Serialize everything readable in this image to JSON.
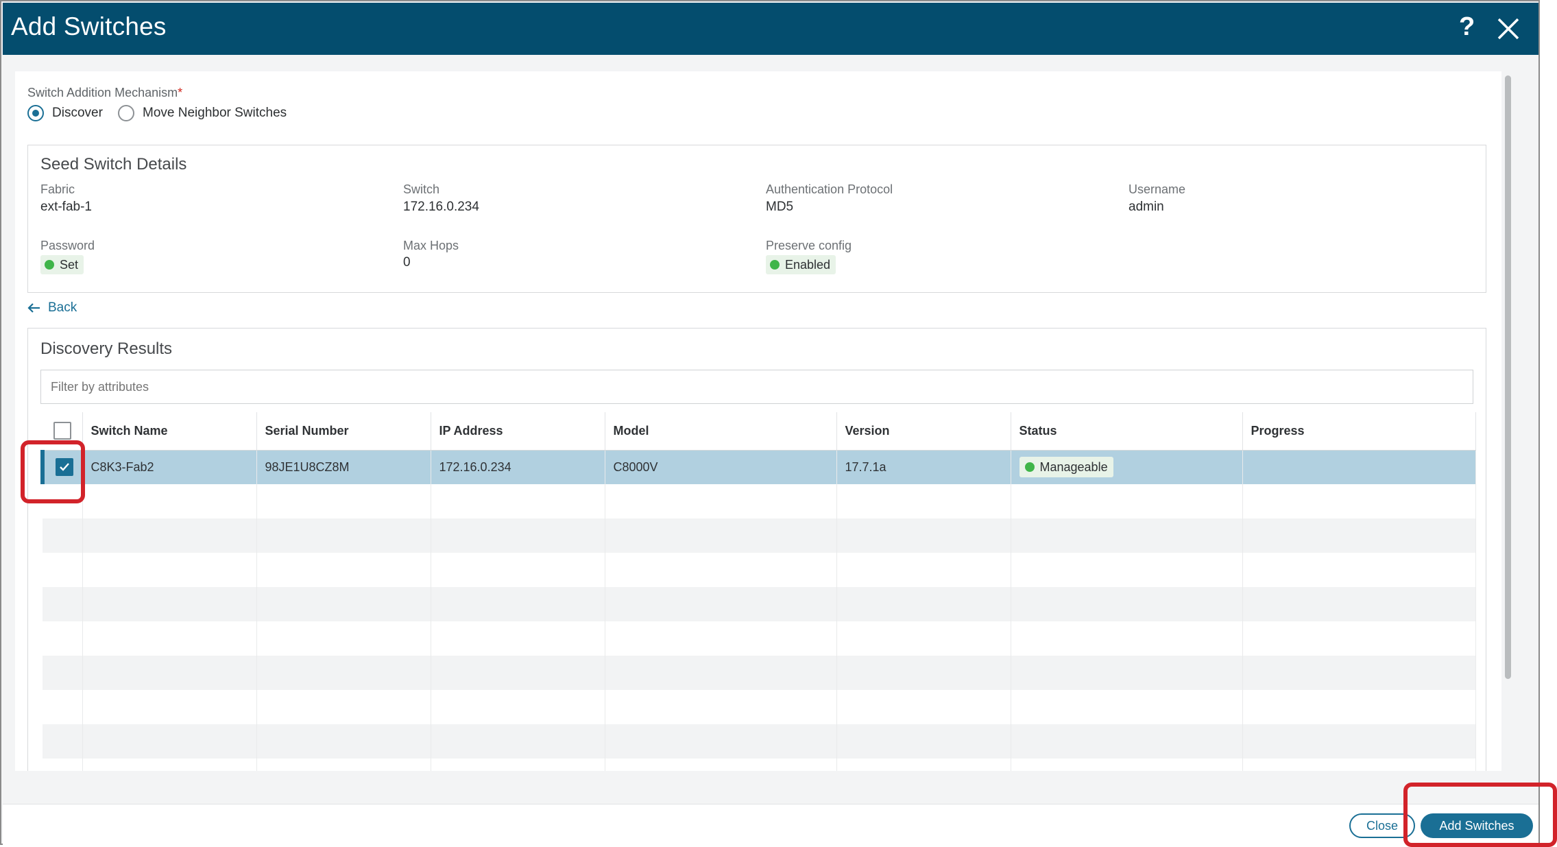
{
  "window": {
    "title": "Add Switches",
    "help_glyph": "?"
  },
  "mechanism": {
    "label": "Switch Addition Mechanism",
    "required_mark": "*",
    "options": [
      {
        "label": "Discover",
        "selected": true
      },
      {
        "label": "Move Neighbor Switches",
        "selected": false
      }
    ]
  },
  "seed": {
    "title": "Seed Switch Details",
    "fabric_label": "Fabric",
    "fabric": "ext-fab-1",
    "switch_label": "Switch",
    "switch": "172.16.0.234",
    "auth_label": "Authentication Protocol",
    "auth": "MD5",
    "username_label": "Username",
    "username": "admin",
    "password_label": "Password",
    "password": "Set",
    "maxhops_label": "Max Hops",
    "maxhops": "0",
    "preserve_label": "Preserve config",
    "preserve": "Enabled"
  },
  "back_label": "Back",
  "discovery": {
    "title": "Discovery Results",
    "filter_placeholder": "Filter by attributes",
    "columns": [
      "Switch Name",
      "Serial Number",
      "IP Address",
      "Model",
      "Version",
      "Status",
      "Progress"
    ],
    "rows": [
      {
        "checked": true,
        "name": "C8K3-Fab2",
        "serial": "98JE1U8CZ8M",
        "ip": "172.16.0.234",
        "model": "C8000V",
        "version": "17.7.1a",
        "status": "Manageable",
        "progress": ""
      }
    ]
  },
  "footer": {
    "close_label": "Close",
    "add_label": "Add Switches"
  },
  "colors": {
    "header": "#044d6e",
    "accent": "#1a6f95",
    "selected_row": "#b1d0e0",
    "status_green": "#3fb549",
    "highlight": "#d2232a"
  }
}
